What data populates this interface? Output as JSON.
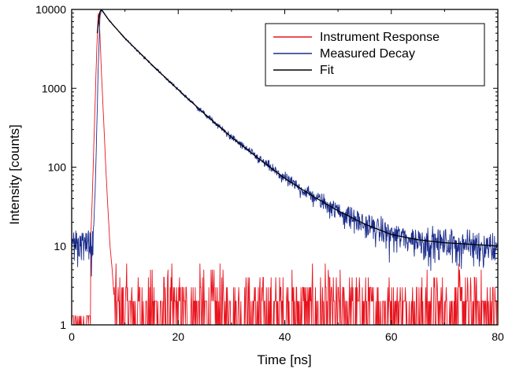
{
  "chart_data": {
    "type": "line",
    "title": "",
    "xlabel": "Time [ns]",
    "ylabel": "Intensity [counts]",
    "xlim": [
      0,
      80
    ],
    "ylim": [
      1,
      10000
    ],
    "yscale": "log",
    "grid": false,
    "legend_position": "top-right",
    "x_ticks": [
      "0",
      "20",
      "40",
      "60",
      "80"
    ],
    "y_ticks": [
      "1",
      "10",
      "100",
      "1000",
      "10000"
    ],
    "series": [
      {
        "name": "Instrument Response",
        "color": "#e8141e",
        "x": [
          0,
          3,
          3.8,
          4.3,
          4.7,
          5.0,
          5.3,
          5.6,
          6.0,
          6.4,
          6.8,
          7.2,
          7.6,
          8.0,
          12,
          20,
          30,
          40,
          50,
          60,
          70,
          80
        ],
        "y": [
          1.5,
          1.5,
          30,
          400,
          3000,
          9800,
          5000,
          1500,
          400,
          100,
          30,
          10,
          5,
          2,
          2,
          2,
          2,
          2,
          2,
          2,
          2,
          2
        ]
      },
      {
        "name": "Measured Decay",
        "color": "#1c2d8c",
        "x": [
          0,
          4.0,
          4.5,
          5.0,
          5.3,
          5.6,
          7,
          10,
          15,
          20,
          25,
          30,
          35,
          40,
          45,
          50,
          55,
          60,
          65,
          70,
          75,
          80
        ],
        "y": [
          11,
          11,
          80,
          2000,
          8000,
          10000,
          7300,
          4300,
          2000,
          960,
          470,
          240,
          130,
          72,
          44,
          28,
          19,
          14,
          12,
          11,
          10.5,
          10
        ]
      },
      {
        "name": "Fit",
        "color": "#000000",
        "x": [
          4.8,
          5.2,
          5.6,
          7,
          10,
          15,
          20,
          25,
          30,
          35,
          40,
          45,
          50,
          55,
          60,
          65,
          70,
          75,
          80
        ],
        "y": [
          5000,
          9000,
          10000,
          7300,
          4300,
          2000,
          960,
          470,
          240,
          130,
          72,
          44,
          28,
          19,
          14,
          12,
          11,
          10.5,
          10
        ]
      }
    ]
  }
}
